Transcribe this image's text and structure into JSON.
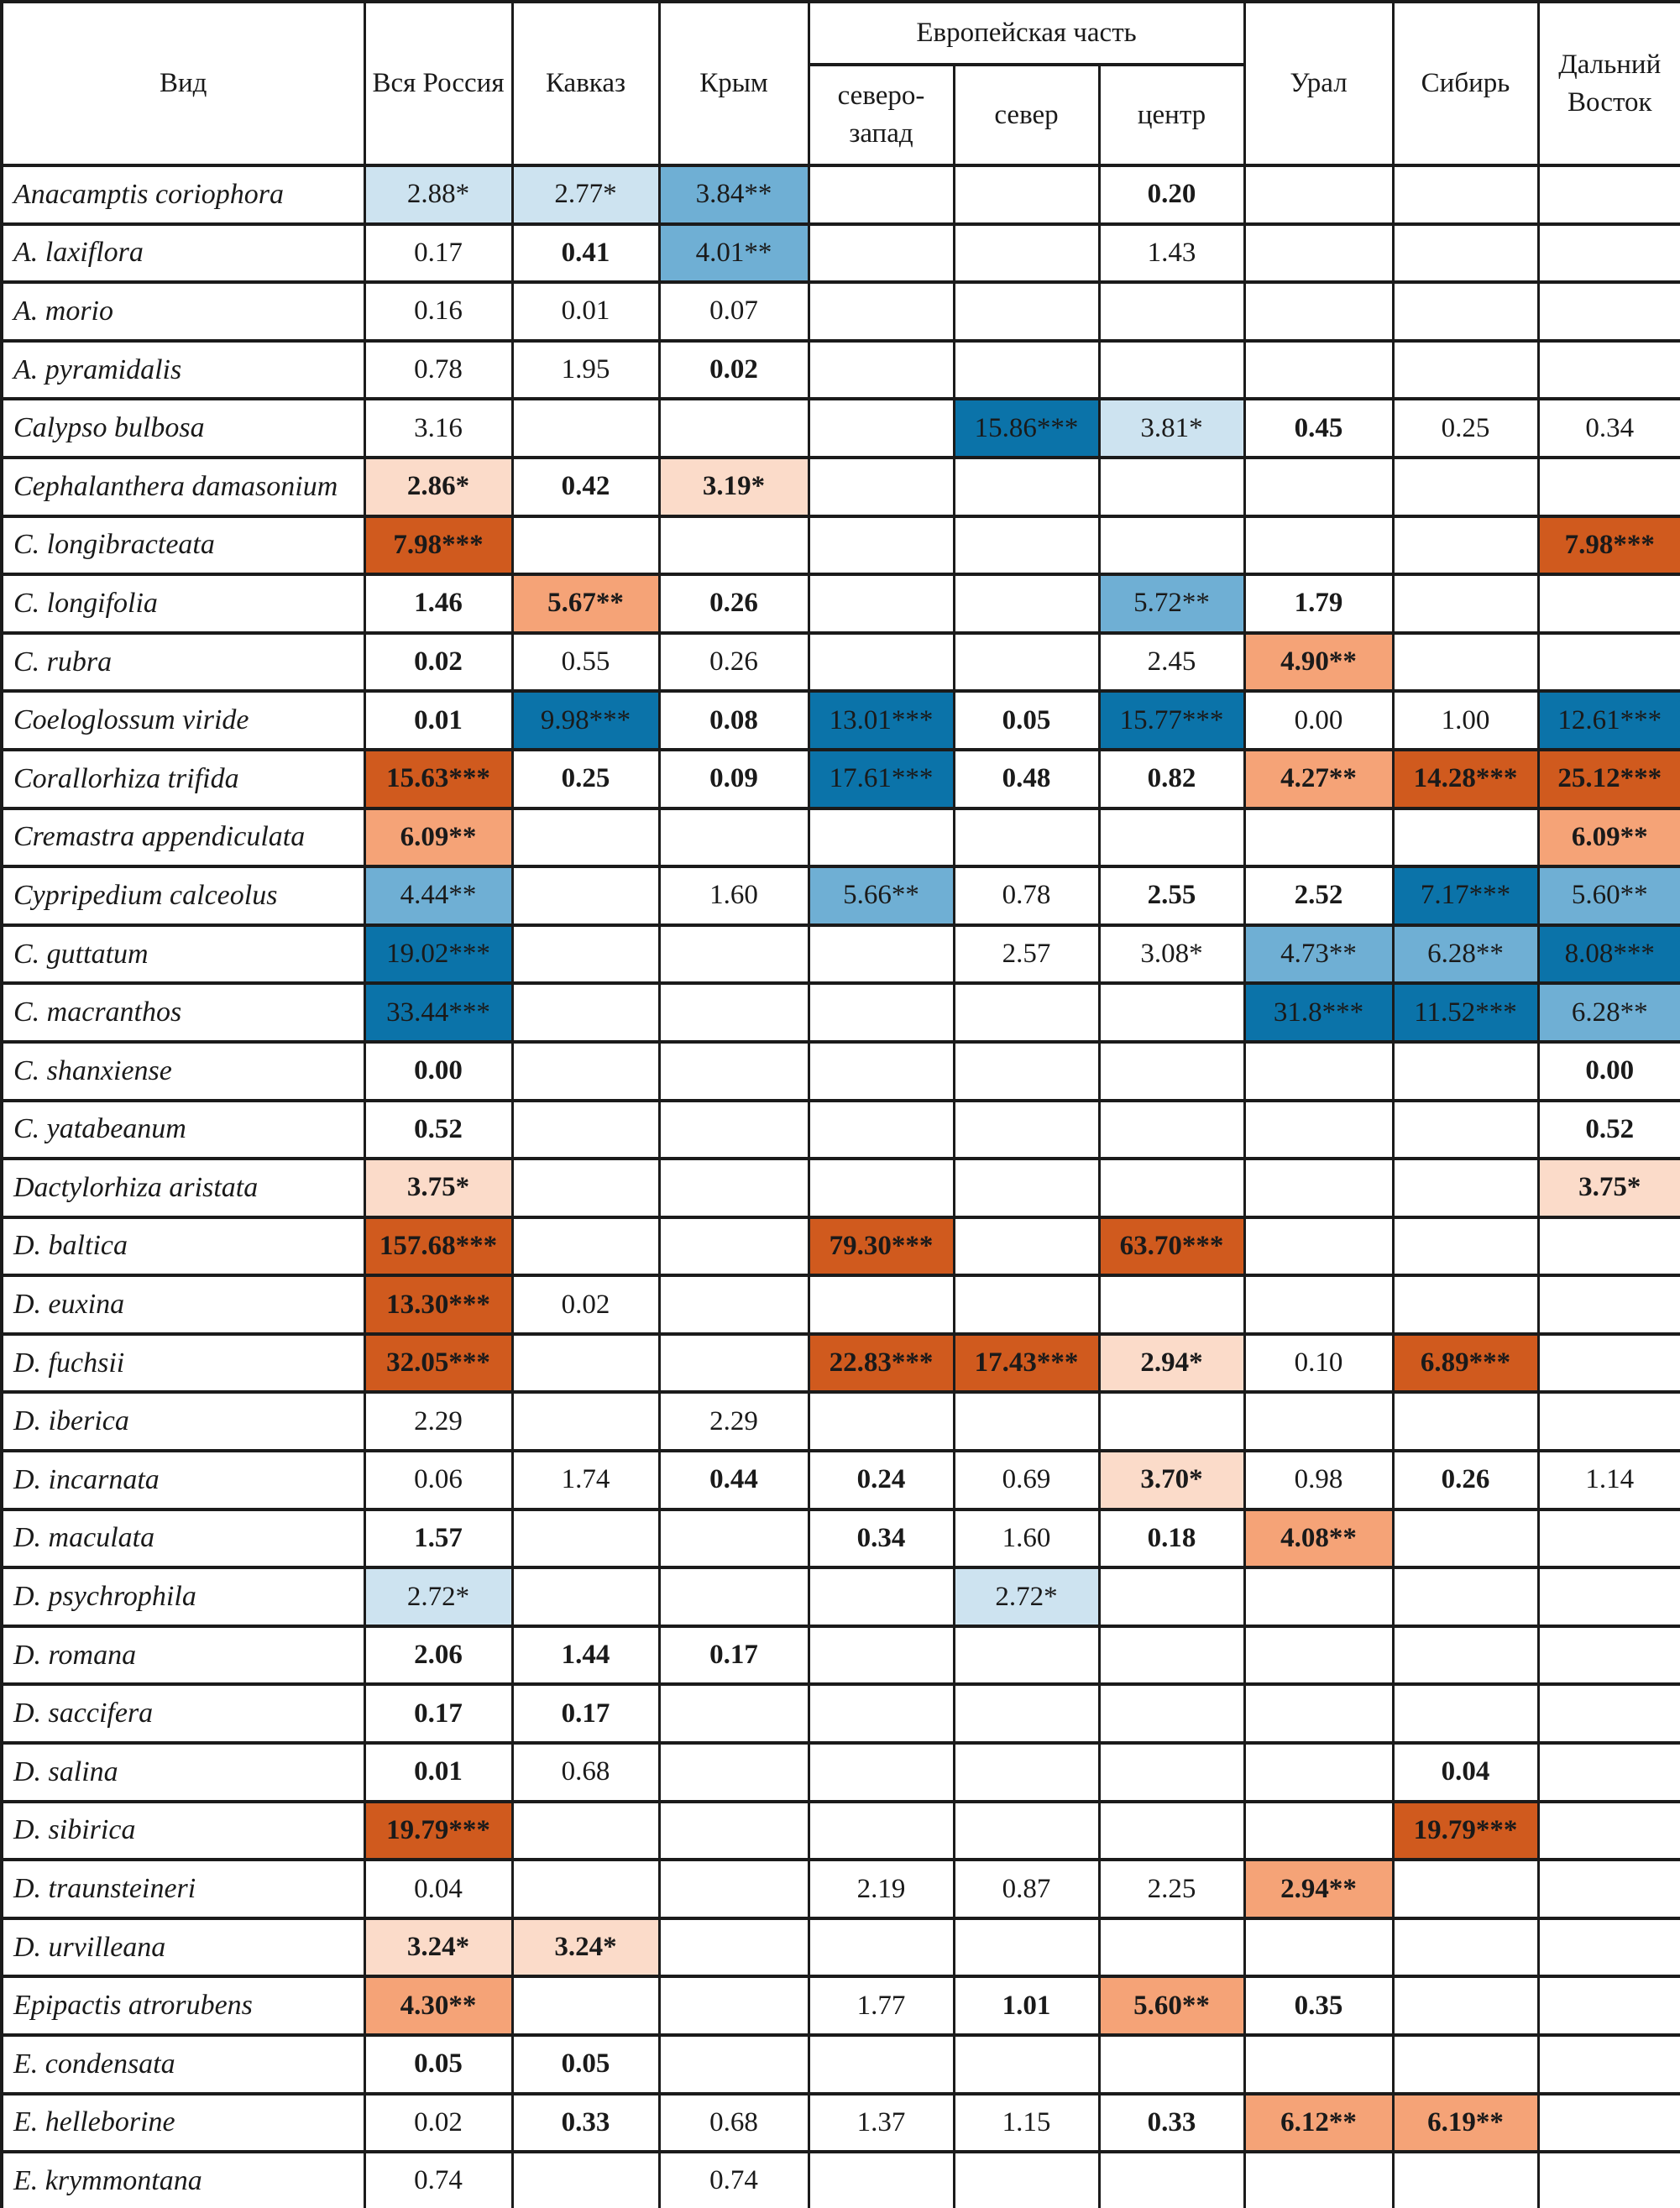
{
  "table": {
    "title_hint": "Chi-square values of orchid species by region of Russia",
    "header": {
      "species": "Вид",
      "all_russia": "Вся Россия",
      "kavkaz": "Кавказ",
      "krym": "Крым",
      "european_part": "Европейская часть",
      "northwest": "северо-запад",
      "north": "север",
      "center": "центр",
      "ural": "Урал",
      "siberia": "Сибирь",
      "far_east": "Дальний Восток"
    },
    "column_order": [
      "all_russia",
      "kavkaz",
      "krym",
      "northwest",
      "north",
      "center",
      "ural",
      "siberia",
      "far_east"
    ],
    "colors": {
      "bL": "#CDE3F0",
      "bM": "#6FAFD4",
      "bD": "#0B73A9",
      "oL": "#FBDBC9",
      "oM": "#F5A377",
      "oD": "#D05A1E",
      "border": "#1B1B1B",
      "text": "#1A1A1A"
    },
    "rows": [
      {
        "species": "Anacamptis coriophora",
        "cells": [
          {
            "t": "2.88*",
            "bg": "bL"
          },
          {
            "t": "2.77*",
            "bg": "bL"
          },
          {
            "t": "3.84**",
            "bg": "bM"
          },
          null,
          null,
          {
            "t": "0.20",
            "b": 1
          },
          null,
          null,
          null
        ]
      },
      {
        "species": "A. laxiflora",
        "cells": [
          {
            "t": "0.17"
          },
          {
            "t": "0.41",
            "b": 1
          },
          {
            "t": "4.01**",
            "bg": "bM"
          },
          null,
          null,
          {
            "t": "1.43"
          },
          null,
          null,
          null
        ]
      },
      {
        "species": "A. morio",
        "cells": [
          {
            "t": "0.16"
          },
          {
            "t": "0.01"
          },
          {
            "t": "0.07"
          },
          null,
          null,
          null,
          null,
          null,
          null
        ]
      },
      {
        "species": "A. pyramidalis",
        "cells": [
          {
            "t": "0.78"
          },
          {
            "t": "1.95"
          },
          {
            "t": "0.02",
            "b": 1
          },
          null,
          null,
          null,
          null,
          null,
          null
        ]
      },
      {
        "species": "Calypso bulbosa",
        "cells": [
          {
            "t": "3.16"
          },
          null,
          null,
          null,
          {
            "t": "15.86***",
            "bg": "bD"
          },
          {
            "t": "3.81*",
            "bg": "bL"
          },
          {
            "t": "0.45",
            "b": 1
          },
          {
            "t": "0.25"
          },
          {
            "t": "0.34"
          }
        ]
      },
      {
        "species": "Cephalanthera damasonium",
        "cells": [
          {
            "t": "2.86*",
            "bg": "oL",
            "b": 1
          },
          {
            "t": "0.42",
            "b": 1
          },
          {
            "t": "3.19*",
            "bg": "oL",
            "b": 1
          },
          null,
          null,
          null,
          null,
          null,
          null
        ]
      },
      {
        "species": "C. longibracteata",
        "cells": [
          {
            "t": "7.98***",
            "bg": "oD",
            "b": 1
          },
          null,
          null,
          null,
          null,
          null,
          null,
          null,
          {
            "t": "7.98***",
            "bg": "oD",
            "b": 1
          }
        ]
      },
      {
        "species": "C. longifolia",
        "cells": [
          {
            "t": "1.46",
            "b": 1
          },
          {
            "t": "5.67**",
            "bg": "oM",
            "b": 1
          },
          {
            "t": "0.26",
            "b": 1
          },
          null,
          null,
          {
            "t": "5.72**",
            "bg": "bM"
          },
          {
            "t": "1.79",
            "b": 1
          },
          null,
          null
        ]
      },
      {
        "species": "C. rubra",
        "cells": [
          {
            "t": "0.02",
            "b": 1
          },
          {
            "t": "0.55"
          },
          {
            "t": "0.26"
          },
          null,
          null,
          {
            "t": "2.45"
          },
          {
            "t": "4.90**",
            "bg": "oM",
            "b": 1
          },
          null,
          null
        ]
      },
      {
        "species": "Coeloglossum viride",
        "cells": [
          {
            "t": "0.01",
            "b": 1
          },
          {
            "t": "9.98***",
            "bg": "bD"
          },
          {
            "t": "0.08",
            "b": 1
          },
          {
            "t": "13.01***",
            "bg": "bD"
          },
          {
            "t": "0.05",
            "b": 1
          },
          {
            "t": "15.77***",
            "bg": "bD"
          },
          {
            "t": "0.00"
          },
          {
            "t": "1.00"
          },
          {
            "t": "12.61***",
            "bg": "bD"
          }
        ]
      },
      {
        "species": "Corallorhiza trifida",
        "cells": [
          {
            "t": "15.63***",
            "bg": "oD",
            "b": 1
          },
          {
            "t": "0.25",
            "b": 1
          },
          {
            "t": "0.09",
            "b": 1
          },
          {
            "t": "17.61***",
            "bg": "bD"
          },
          {
            "t": "0.48",
            "b": 1
          },
          {
            "t": "0.82",
            "b": 1
          },
          {
            "t": "4.27**",
            "bg": "oM",
            "b": 1
          },
          {
            "t": "14.28***",
            "bg": "oD",
            "b": 1
          },
          {
            "t": "25.12***",
            "bg": "oD",
            "b": 1
          }
        ]
      },
      {
        "species": "Cremastra appendiculata",
        "cells": [
          {
            "t": "6.09**",
            "bg": "oM",
            "b": 1
          },
          null,
          null,
          null,
          null,
          null,
          null,
          null,
          {
            "t": "6.09**",
            "bg": "oM",
            "b": 1
          }
        ]
      },
      {
        "species": "Cypripedium calceolus",
        "cells": [
          {
            "t": "4.44**",
            "bg": "bM"
          },
          null,
          {
            "t": "1.60"
          },
          {
            "t": "5.66**",
            "bg": "bM"
          },
          {
            "t": "0.78"
          },
          {
            "t": "2.55",
            "b": 1
          },
          {
            "t": "2.52",
            "b": 1
          },
          {
            "t": "7.17***",
            "bg": "bD"
          },
          {
            "t": "5.60**",
            "bg": "bM"
          }
        ]
      },
      {
        "species": "C. guttatum",
        "cells": [
          {
            "t": "19.02***",
            "bg": "bD"
          },
          null,
          null,
          null,
          {
            "t": "2.57"
          },
          {
            "t": "3.08*"
          },
          {
            "t": "4.73**",
            "bg": "bM"
          },
          {
            "t": "6.28**",
            "bg": "bM"
          },
          {
            "t": "8.08***",
            "bg": "bD"
          }
        ]
      },
      {
        "species": "C. macranthos",
        "cells": [
          {
            "t": "33.44***",
            "bg": "bD"
          },
          null,
          null,
          null,
          null,
          null,
          {
            "t": "31.8***",
            "bg": "bD"
          },
          {
            "t": "11.52***",
            "bg": "bD"
          },
          {
            "t": "6.28**",
            "bg": "bM"
          }
        ]
      },
      {
        "species": "C. shanxiense",
        "cells": [
          {
            "t": "0.00",
            "b": 1
          },
          null,
          null,
          null,
          null,
          null,
          null,
          null,
          {
            "t": "0.00",
            "b": 1
          }
        ]
      },
      {
        "species": "C. yatabeanum",
        "cells": [
          {
            "t": "0.52",
            "b": 1
          },
          null,
          null,
          null,
          null,
          null,
          null,
          null,
          {
            "t": "0.52",
            "b": 1
          }
        ]
      },
      {
        "species": "Dactylorhiza aristata",
        "cells": [
          {
            "t": "3.75*",
            "bg": "oL",
            "b": 1
          },
          null,
          null,
          null,
          null,
          null,
          null,
          null,
          {
            "t": "3.75*",
            "bg": "oL",
            "b": 1
          }
        ]
      },
      {
        "species": "D. baltica",
        "cells": [
          {
            "t": "157.68***",
            "bg": "oD",
            "b": 1
          },
          null,
          null,
          {
            "t": "79.30***",
            "bg": "oD",
            "b": 1
          },
          null,
          {
            "t": "63.70***",
            "bg": "oD",
            "b": 1
          },
          null,
          null,
          null
        ]
      },
      {
        "species": "D. euxina",
        "cells": [
          {
            "t": "13.30***",
            "bg": "oD",
            "b": 1
          },
          {
            "t": "0.02"
          },
          null,
          null,
          null,
          null,
          null,
          null,
          null
        ]
      },
      {
        "species": "D. fuchsii",
        "cells": [
          {
            "t": "32.05***",
            "bg": "oD",
            "b": 1
          },
          null,
          null,
          {
            "t": "22.83***",
            "bg": "oD",
            "b": 1
          },
          {
            "t": "17.43***",
            "bg": "oD",
            "b": 1
          },
          {
            "t": "2.94*",
            "bg": "oL",
            "b": 1
          },
          {
            "t": "0.10"
          },
          {
            "t": "6.89***",
            "bg": "oD",
            "b": 1
          },
          null
        ]
      },
      {
        "species": "D. iberica",
        "cells": [
          {
            "t": "2.29"
          },
          null,
          {
            "t": "2.29"
          },
          null,
          null,
          null,
          null,
          null,
          null
        ]
      },
      {
        "species": "D. incarnata",
        "cells": [
          {
            "t": "0.06"
          },
          {
            "t": "1.74"
          },
          {
            "t": "0.44",
            "b": 1
          },
          {
            "t": "0.24",
            "b": 1
          },
          {
            "t": "0.69"
          },
          {
            "t": "3.70*",
            "bg": "oL",
            "b": 1
          },
          {
            "t": "0.98"
          },
          {
            "t": "0.26",
            "b": 1
          },
          {
            "t": "1.14"
          }
        ]
      },
      {
        "species": "D. maculata",
        "cells": [
          {
            "t": "1.57",
            "b": 1
          },
          null,
          null,
          {
            "t": "0.34",
            "b": 1
          },
          {
            "t": "1.60"
          },
          {
            "t": "0.18",
            "b": 1
          },
          {
            "t": "4.08**",
            "bg": "oM",
            "b": 1
          },
          null,
          null
        ]
      },
      {
        "species": "D. psychrophila",
        "cells": [
          {
            "t": "2.72*",
            "bg": "bL"
          },
          null,
          null,
          null,
          {
            "t": "2.72*",
            "bg": "bL"
          },
          null,
          null,
          null,
          null
        ]
      },
      {
        "species": "D. romana",
        "cells": [
          {
            "t": "2.06",
            "b": 1
          },
          {
            "t": "1.44",
            "b": 1
          },
          {
            "t": "0.17",
            "b": 1
          },
          null,
          null,
          null,
          null,
          null,
          null
        ]
      },
      {
        "species": "D. saccifera",
        "cells": [
          {
            "t": "0.17",
            "b": 1
          },
          {
            "t": "0.17",
            "b": 1
          },
          null,
          null,
          null,
          null,
          null,
          null,
          null
        ]
      },
      {
        "species": "D. salina",
        "cells": [
          {
            "t": "0.01",
            "b": 1
          },
          {
            "t": "0.68"
          },
          null,
          null,
          null,
          null,
          null,
          {
            "t": "0.04",
            "b": 1
          },
          null
        ]
      },
      {
        "species": "D. sibirica",
        "cells": [
          {
            "t": "19.79***",
            "bg": "oD",
            "b": 1
          },
          null,
          null,
          null,
          null,
          null,
          null,
          {
            "t": "19.79***",
            "bg": "oD",
            "b": 1
          },
          null
        ]
      },
      {
        "species": "D. traunsteineri",
        "cells": [
          {
            "t": "0.04"
          },
          null,
          null,
          {
            "t": "2.19"
          },
          {
            "t": "0.87"
          },
          {
            "t": "2.25"
          },
          {
            "t": "2.94**",
            "bg": "oM",
            "b": 1
          },
          null,
          null
        ]
      },
      {
        "species": "D. urvilleana",
        "cells": [
          {
            "t": "3.24*",
            "bg": "oL",
            "b": 1
          },
          {
            "t": "3.24*",
            "bg": "oL",
            "b": 1
          },
          null,
          null,
          null,
          null,
          null,
          null,
          null
        ]
      },
      {
        "species": "Epipactis atrorubens",
        "cells": [
          {
            "t": "4.30**",
            "bg": "oM",
            "b": 1
          },
          null,
          null,
          {
            "t": "1.77"
          },
          {
            "t": "1.01",
            "b": 1
          },
          {
            "t": "5.60**",
            "bg": "oM",
            "b": 1
          },
          {
            "t": "0.35",
            "b": 1
          },
          null,
          null
        ]
      },
      {
        "species": "E. condensata",
        "cells": [
          {
            "t": "0.05",
            "b": 1
          },
          {
            "t": "0.05",
            "b": 1
          },
          null,
          null,
          null,
          null,
          null,
          null,
          null
        ]
      },
      {
        "species": "E. helleborine",
        "cells": [
          {
            "t": "0.02"
          },
          {
            "t": "0.33",
            "b": 1
          },
          {
            "t": "0.68"
          },
          {
            "t": "1.37"
          },
          {
            "t": "1.15"
          },
          {
            "t": "0.33",
            "b": 1
          },
          {
            "t": "6.12**",
            "bg": "oM",
            "b": 1
          },
          {
            "t": "6.19**",
            "bg": "oM",
            "b": 1
          },
          null
        ]
      },
      {
        "species": "E. krymmontana",
        "cells": [
          {
            "t": "0.74"
          },
          null,
          {
            "t": "0.74"
          },
          null,
          null,
          null,
          null,
          null,
          null
        ]
      }
    ]
  }
}
